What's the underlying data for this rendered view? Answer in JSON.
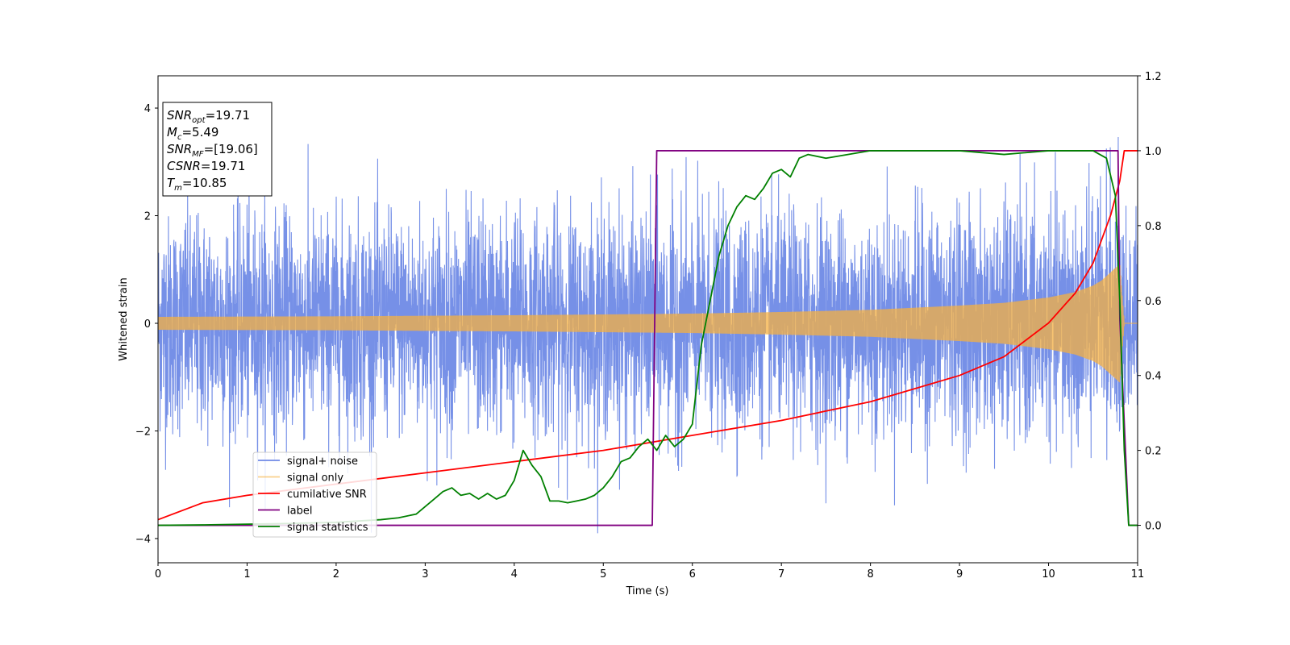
{
  "chart_data": {
    "type": "line",
    "xlabel": "Time (s)",
    "ylabel": "Whitened strain",
    "xlim": [
      0,
      11
    ],
    "ylim_left": [
      -4.45,
      4.6
    ],
    "ylim_right": [
      -0.1,
      1.2
    ],
    "x_ticks": [
      "0",
      "1",
      "2",
      "3",
      "4",
      "5",
      "6",
      "7",
      "8",
      "9",
      "10",
      "11"
    ],
    "y_ticks_left": [
      "4",
      "2",
      "0",
      "−2",
      "−4"
    ],
    "y_ticks_right": [
      "1.2",
      "1.0",
      "0.8",
      "0.6",
      "0.4",
      "0.2",
      "0.0"
    ],
    "grid": false,
    "legend_position": "lower-left",
    "info_box": [
      {
        "main": "SNR",
        "sub": "opt",
        "value": "=19.71"
      },
      {
        "main": "M",
        "sub": "c",
        "value": "=5.49"
      },
      {
        "main": "SNR",
        "sub": "MF",
        "value": "=[19.06]"
      },
      {
        "main": "CSNR",
        "sub": "",
        "value": "=19.71"
      },
      {
        "main": "T",
        "sub": "m",
        "value": "=10.85"
      }
    ],
    "series": [
      {
        "name": "signal+ noise",
        "axis": "left",
        "color": "#6F8AE6",
        "kind": "noisy_band",
        "noise_sigma": 1.0,
        "x_range": [
          0,
          11
        ]
      },
      {
        "name": "signal only",
        "axis": "left",
        "color": "#F5B041",
        "kind": "chirp_envelope",
        "envelope_x": [
          0,
          2,
          4,
          6,
          7,
          8,
          9,
          9.5,
          10,
          10.3,
          10.5,
          10.6,
          10.7,
          10.8,
          10.85,
          11
        ],
        "envelope_y": [
          0.12,
          0.13,
          0.15,
          0.18,
          0.21,
          0.25,
          0.33,
          0.38,
          0.48,
          0.58,
          0.7,
          0.8,
          0.95,
          1.1,
          0.0,
          0.0
        ]
      },
      {
        "name": "cumilative SNR",
        "axis": "right",
        "color": "#FF0000",
        "x": [
          0,
          0.5,
          1,
          2,
          3,
          4,
          5,
          6,
          7,
          8,
          9,
          9.5,
          10,
          10.3,
          10.5,
          10.7,
          10.8,
          10.85,
          11
        ],
        "y": [
          0.015,
          0.06,
          0.08,
          0.11,
          0.14,
          0.17,
          0.2,
          0.24,
          0.28,
          0.33,
          0.4,
          0.45,
          0.54,
          0.62,
          0.7,
          0.83,
          0.92,
          1.0,
          1.0
        ]
      },
      {
        "name": "label",
        "axis": "right",
        "color": "#800080",
        "x": [
          0,
          5.55,
          5.6,
          10.78,
          10.8,
          10.9,
          11
        ],
        "y": [
          0.0,
          0.0,
          1.0,
          1.0,
          0.55,
          0.0,
          0.0
        ]
      },
      {
        "name": "signal statistics",
        "axis": "right",
        "color": "#008000",
        "x": [
          0,
          0.5,
          1,
          1.5,
          2,
          2.5,
          2.7,
          2.9,
          3.0,
          3.1,
          3.2,
          3.3,
          3.4,
          3.5,
          3.6,
          3.7,
          3.8,
          3.9,
          4.0,
          4.1,
          4.2,
          4.3,
          4.4,
          4.5,
          4.6,
          4.7,
          4.8,
          4.9,
          5.0,
          5.1,
          5.2,
          5.3,
          5.4,
          5.5,
          5.6,
          5.7,
          5.8,
          5.9,
          6.0,
          6.1,
          6.2,
          6.3,
          6.4,
          6.5,
          6.6,
          6.7,
          6.8,
          6.9,
          7.0,
          7.1,
          7.2,
          7.3,
          7.5,
          8.0,
          8.5,
          9.0,
          9.5,
          10.0,
          10.5,
          10.65,
          10.75,
          10.8,
          10.85,
          10.9,
          11
        ],
        "y": [
          0.0,
          0.001,
          0.003,
          0.005,
          0.008,
          0.015,
          0.02,
          0.03,
          0.05,
          0.07,
          0.09,
          0.1,
          0.08,
          0.085,
          0.07,
          0.085,
          0.07,
          0.08,
          0.12,
          0.2,
          0.16,
          0.13,
          0.065,
          0.065,
          0.06,
          0.065,
          0.07,
          0.08,
          0.1,
          0.13,
          0.17,
          0.18,
          0.21,
          0.23,
          0.2,
          0.24,
          0.21,
          0.23,
          0.27,
          0.48,
          0.6,
          0.72,
          0.8,
          0.85,
          0.88,
          0.87,
          0.9,
          0.94,
          0.95,
          0.93,
          0.98,
          0.99,
          0.98,
          1.0,
          1.0,
          1.0,
          0.99,
          1.0,
          1.0,
          0.98,
          0.88,
          0.6,
          0.2,
          0.0,
          0.0
        ]
      }
    ]
  }
}
